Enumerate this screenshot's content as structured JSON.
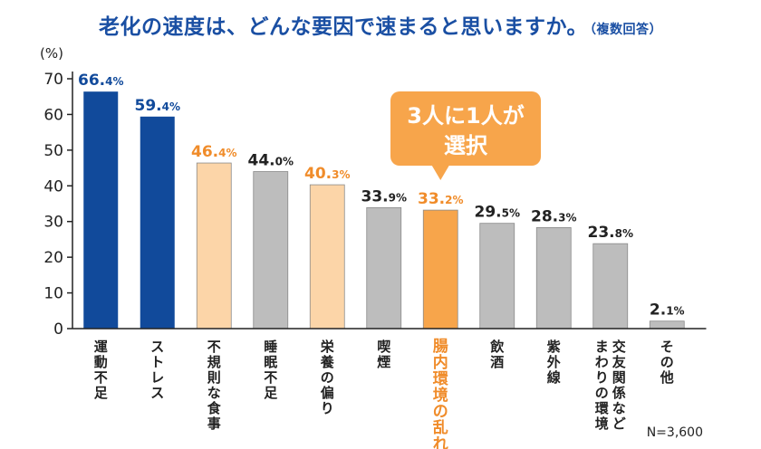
{
  "title": "老化の速度は、どんな要因で速まると思いますか。",
  "subtitle": "（複数回答）",
  "callout": {
    "line1": "3人に1人が",
    "line2": "選択"
  },
  "sample_note": "N=3,600",
  "colors": {
    "title": "#1a4fa3",
    "blue": "#114a9b",
    "light_orange": "#fcd5a8",
    "gray": "#bdbdbd",
    "orange": "#f7a54b",
    "orange_text": "#f08c2a",
    "callout": "#f7a54b"
  },
  "chart_data": {
    "type": "bar",
    "ylabel": "(%)",
    "ylim": [
      0,
      70
    ],
    "yticks": [
      0,
      10,
      20,
      30,
      40,
      50,
      60,
      70
    ],
    "grid": false,
    "categories": [
      "運動不足",
      "ストレス",
      "不規則な食事",
      "睡眠不足",
      "栄養の偏り",
      "喫煙",
      "腸内環境の乱れ",
      "飲酒",
      "紫外線",
      "交友関係など まわりの環境",
      "その他"
    ],
    "values": [
      66.4,
      59.4,
      46.4,
      44.0,
      40.3,
      33.9,
      33.2,
      29.5,
      28.3,
      23.8,
      2.1
    ],
    "value_labels": [
      {
        "int": "66.",
        "dec": "4%"
      },
      {
        "int": "59.",
        "dec": "4%"
      },
      {
        "int": "46.",
        "dec": "4%"
      },
      {
        "int": "44.",
        "dec": "0%"
      },
      {
        "int": "40.",
        "dec": "3%"
      },
      {
        "int": "33.",
        "dec": "9%"
      },
      {
        "int": "33.",
        "dec": "2%"
      },
      {
        "int": "29.",
        "dec": "5%"
      },
      {
        "int": "28.",
        "dec": "3%"
      },
      {
        "int": "23.",
        "dec": "8%"
      },
      {
        "int": "2.",
        "dec": "1%"
      }
    ],
    "bar_colors": [
      "blue",
      "blue",
      "light_orange",
      "gray",
      "light_orange",
      "gray",
      "orange",
      "gray",
      "gray",
      "gray",
      "gray"
    ],
    "label_colors": [
      "blue",
      "blue",
      "orange_text",
      "dark",
      "orange_text",
      "dark",
      "orange_text",
      "dark",
      "dark",
      "dark",
      "dark"
    ],
    "category_label_colors": [
      "dark",
      "dark",
      "dark",
      "dark",
      "dark",
      "dark",
      "orange_text",
      "dark",
      "dark",
      "dark",
      "dark"
    ],
    "highlight_index": 6
  }
}
